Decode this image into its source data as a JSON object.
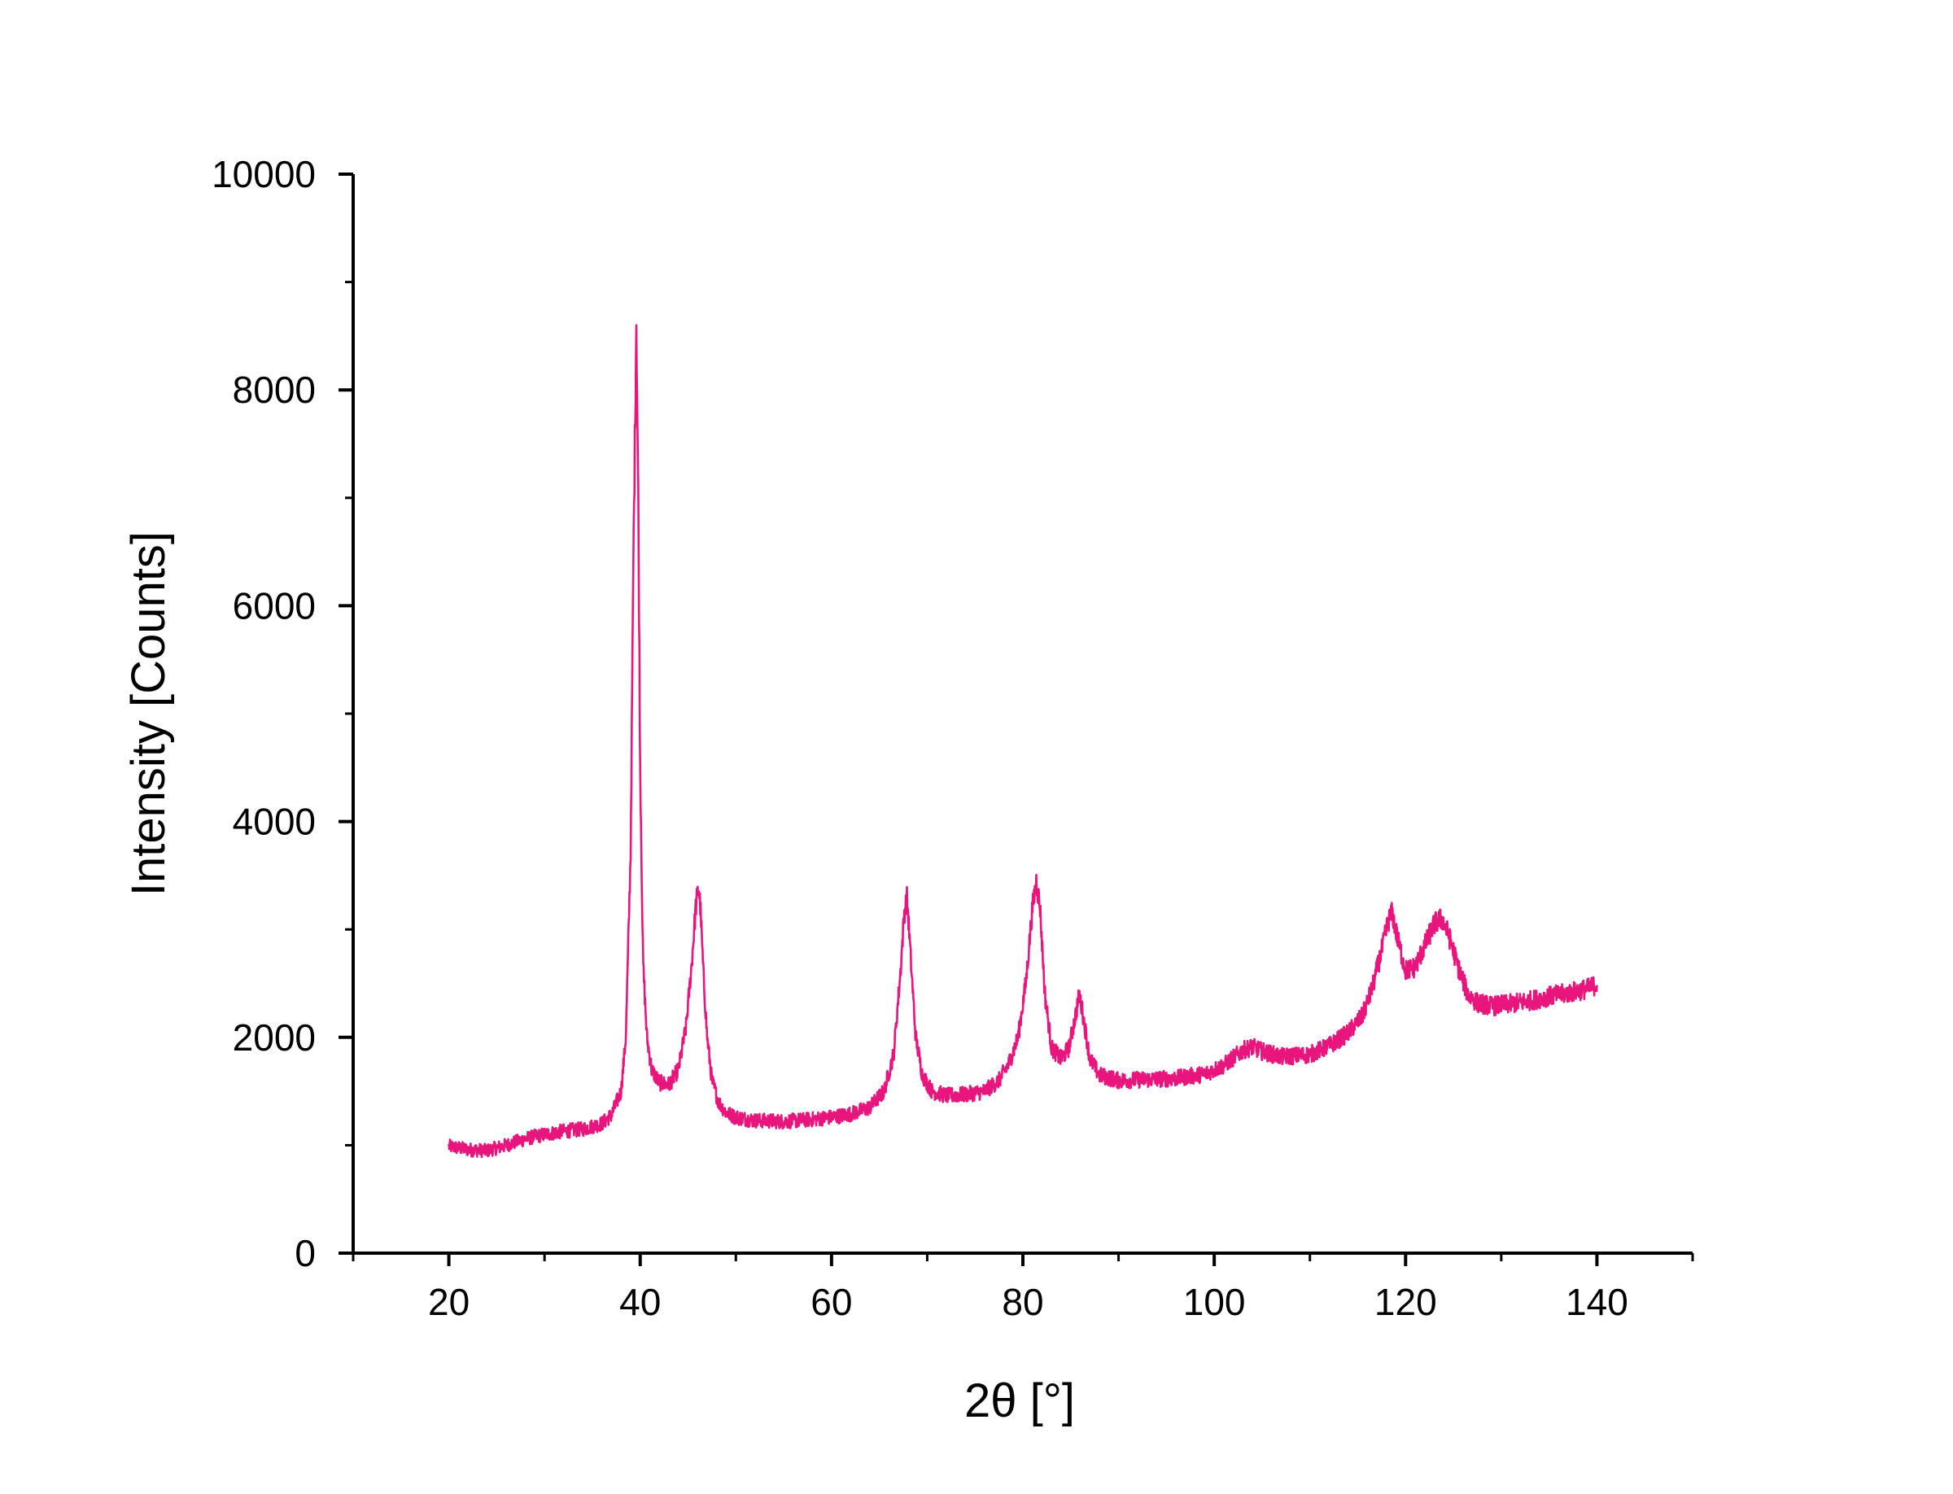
{
  "chart_data": {
    "type": "line",
    "xlabel": "2θ [°]",
    "ylabel": "Intensity [Counts]",
    "xlim": [
      10,
      150
    ],
    "ylim": [
      0,
      10000
    ],
    "x_ticks": [
      20,
      40,
      60,
      80,
      100,
      120,
      140
    ],
    "x_tick_labels": [
      "20",
      "40",
      "60",
      "80",
      "100",
      "120",
      "140"
    ],
    "y_ticks": [
      0,
      2000,
      4000,
      6000,
      8000,
      10000
    ],
    "y_tick_labels": [
      "0",
      "2000",
      "4000",
      "6000",
      "8000",
      "10000"
    ],
    "grid": false,
    "legend": "none",
    "line_color": "#e8157c",
    "series": [
      {
        "x": [
          20,
          22,
          24,
          26,
          28,
          30,
          32,
          34,
          36,
          37,
          38,
          38.5,
          39,
          39.3,
          39.6,
          39.8,
          40,
          40.3,
          40.7,
          41.2,
          42,
          43,
          44,
          44.8,
          45.4,
          45.8,
          46.1,
          46.3,
          46.6,
          47,
          47.5,
          48.2,
          49,
          50,
          52,
          55,
          58,
          60,
          62,
          64,
          65.5,
          66.5,
          67.2,
          67.6,
          67.9,
          68.3,
          68.8,
          69.5,
          70.5,
          72,
          74,
          76,
          77.5,
          78.5,
          79.5,
          80.3,
          81,
          81.4,
          81.8,
          82.3,
          83,
          84,
          84.8,
          85.5,
          85.9,
          86.3,
          87,
          88,
          90,
          93,
          96,
          99,
          101,
          103,
          104,
          105,
          107,
          110,
          112,
          114,
          115.5,
          116.5,
          117.5,
          118.2,
          118.6,
          119.2,
          120,
          121,
          122,
          123,
          123.8,
          124.5,
          125.5,
          126.5,
          127.5,
          129,
          131,
          133,
          135,
          137,
          139,
          140
        ],
        "y": [
          990,
          960,
          950,
          1000,
          1060,
          1100,
          1130,
          1150,
          1200,
          1280,
          1500,
          2000,
          3700,
          6500,
          8650,
          7000,
          4500,
          2700,
          2000,
          1700,
          1580,
          1560,
          1700,
          2100,
          2700,
          3200,
          3400,
          3200,
          2600,
          2000,
          1600,
          1400,
          1300,
          1260,
          1230,
          1220,
          1240,
          1260,
          1290,
          1350,
          1500,
          1850,
          2600,
          3150,
          3300,
          2700,
          2000,
          1650,
          1500,
          1460,
          1470,
          1500,
          1600,
          1750,
          2000,
          2500,
          3200,
          3450,
          3200,
          2400,
          1900,
          1800,
          1900,
          2200,
          2400,
          2200,
          1800,
          1650,
          1600,
          1610,
          1620,
          1660,
          1740,
          1880,
          1910,
          1870,
          1820,
          1840,
          1920,
          2040,
          2200,
          2450,
          2800,
          3080,
          3150,
          2900,
          2620,
          2650,
          2850,
          3050,
          3100,
          2950,
          2650,
          2400,
          2320,
          2290,
          2310,
          2340,
          2380,
          2410,
          2450,
          2490
        ]
      }
    ]
  }
}
